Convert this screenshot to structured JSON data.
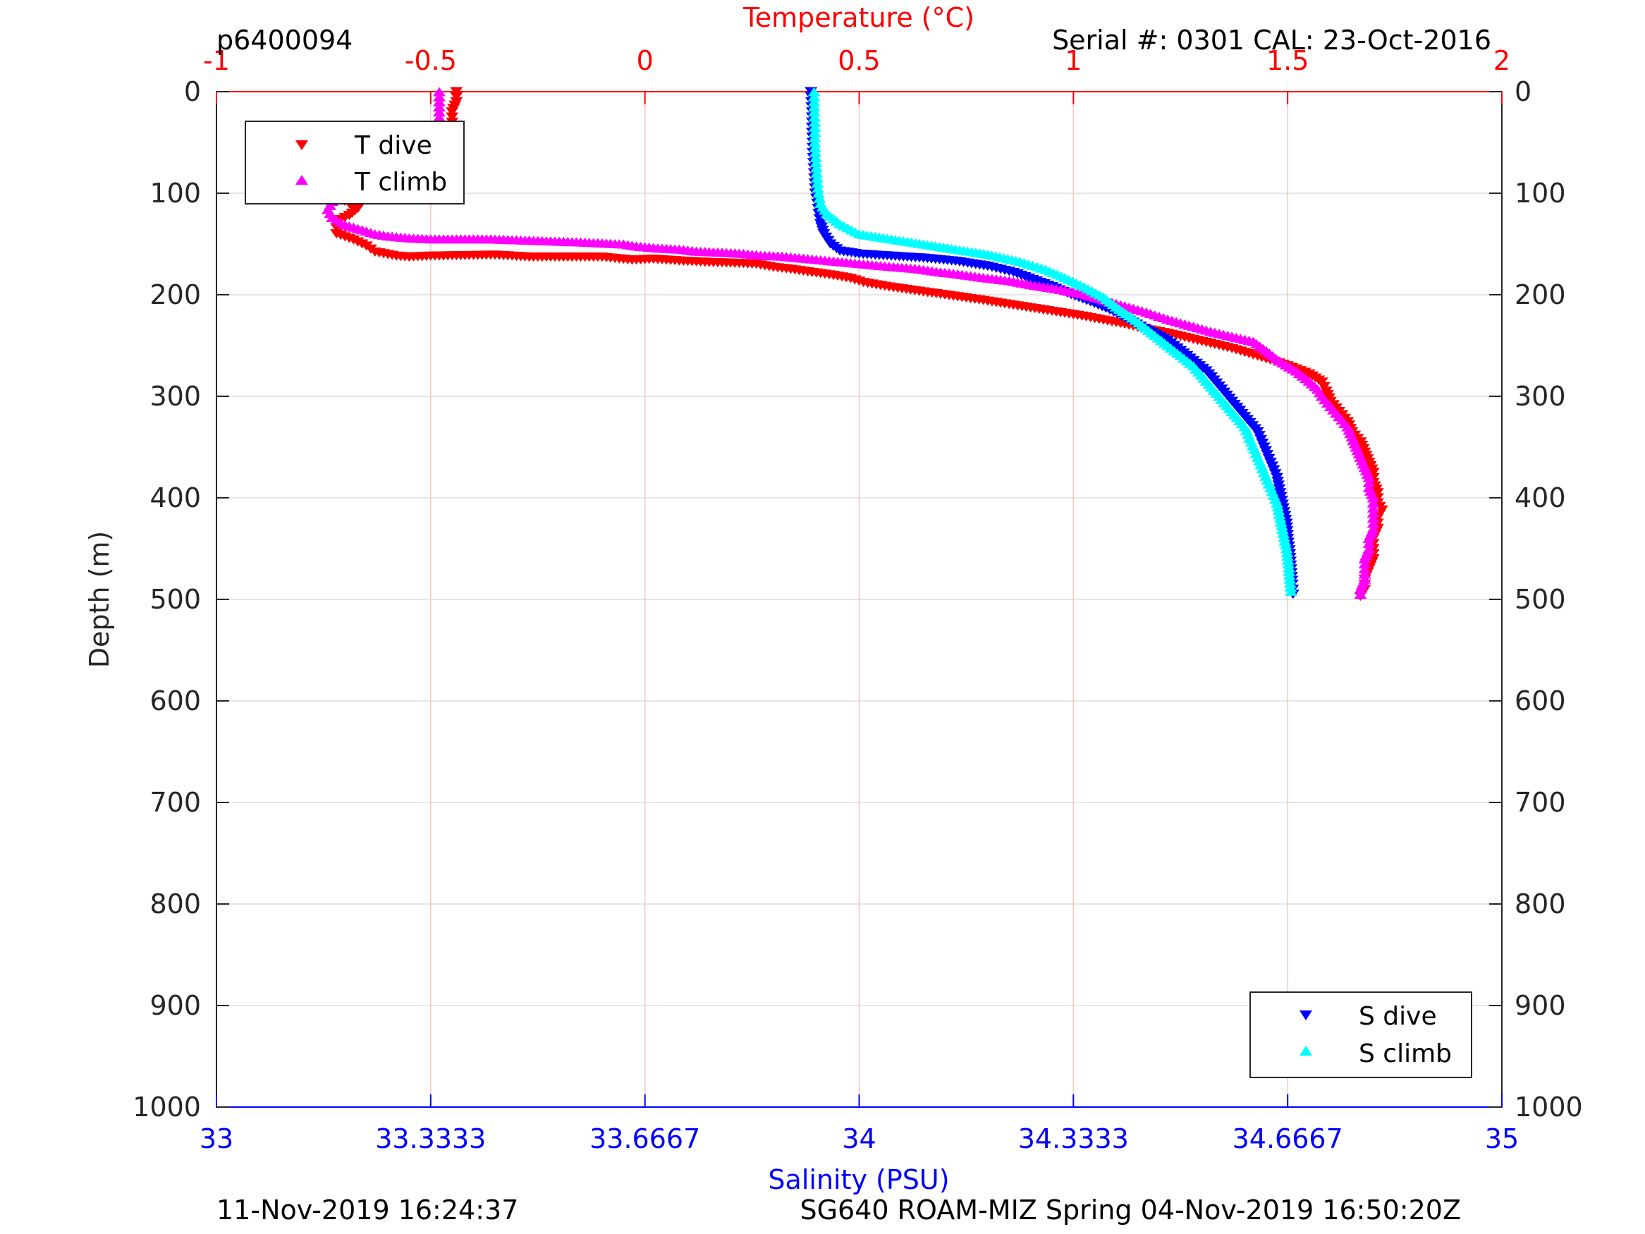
{
  "header": {
    "left_id": "p6400094",
    "right_info": "Serial #: 0301  CAL: 23-Oct-2016"
  },
  "footer": {
    "left_timestamp": "11-Nov-2019 16:24:37",
    "right_info": "SG640 ROAM-MIZ Spring 04-Nov-2019 16:50:20Z"
  },
  "colors": {
    "temperature_axis": "#ff0000",
    "salinity_axis": "#0000ff",
    "t_dive": "#ff0000",
    "t_climb": "#ff00ff",
    "s_dive": "#0000ff",
    "s_climb": "#00ffff",
    "grid_vertical": "#f4c6c6",
    "grid_horizontal": "#dddddd"
  },
  "chart_data": {
    "type": "scatter",
    "top_axis": {
      "label": "Temperature (°C)",
      "range": [
        -1,
        2
      ],
      "ticks": [
        -1,
        -0.5,
        0,
        0.5,
        1,
        1.5,
        2
      ],
      "tick_labels": [
        "-1",
        "-0.5",
        "0",
        "0.5",
        "1",
        "1.5",
        "2"
      ]
    },
    "bottom_axis": {
      "label": "Salinity (PSU)",
      "range": [
        33,
        35
      ],
      "ticks": [
        33,
        33.3333,
        33.6667,
        34,
        34.3333,
        34.6667,
        35
      ],
      "tick_labels": [
        "33",
        "33.3333",
        "33.6667",
        "34",
        "34.3333",
        "34.6667",
        "35"
      ]
    },
    "y_axis": {
      "label": "Depth (m)",
      "range": [
        0,
        1000
      ],
      "reversed": true,
      "ticks": [
        0,
        100,
        200,
        300,
        400,
        500,
        600,
        700,
        800,
        900,
        1000
      ],
      "tick_labels": [
        "0",
        "100",
        "200",
        "300",
        "400",
        "500",
        "600",
        "700",
        "800",
        "900",
        "1000"
      ]
    },
    "grid": true,
    "legends": [
      {
        "placement": "top-left",
        "entries": [
          "T dive",
          "T climb"
        ]
      },
      {
        "placement": "bottom-right",
        "entries": [
          "S dive",
          "S climb"
        ]
      }
    ],
    "series": [
      {
        "name": "T dive",
        "axis": "temperature",
        "marker": "triangle-down",
        "points": [
          [
            -0.44,
            0
          ],
          [
            -0.44,
            10
          ],
          [
            -0.45,
            20
          ],
          [
            -0.45,
            30
          ],
          [
            -0.45,
            40
          ],
          [
            -0.45,
            50
          ],
          [
            -0.46,
            60
          ],
          [
            -0.47,
            70
          ],
          [
            -0.49,
            78
          ],
          [
            -0.54,
            85
          ],
          [
            -0.6,
            92
          ],
          [
            -0.66,
            100
          ],
          [
            -0.7,
            108
          ],
          [
            -0.67,
            115
          ],
          [
            -0.69,
            122
          ],
          [
            -0.72,
            128
          ],
          [
            -0.72,
            134
          ],
          [
            -0.72,
            140
          ],
          [
            -0.68,
            146
          ],
          [
            -0.65,
            152
          ],
          [
            -0.63,
            158
          ],
          [
            -0.58,
            162
          ],
          [
            -0.55,
            163
          ],
          [
            -0.5,
            162
          ],
          [
            -0.35,
            161
          ],
          [
            -0.27,
            163
          ],
          [
            -0.19,
            163
          ],
          [
            -0.1,
            163
          ],
          [
            -0.03,
            166
          ],
          [
            0.02,
            165
          ],
          [
            0.09,
            167
          ],
          [
            0.14,
            168
          ],
          [
            0.21,
            169
          ],
          [
            0.26,
            170
          ],
          [
            0.3,
            173
          ],
          [
            0.34,
            175
          ],
          [
            0.39,
            178
          ],
          [
            0.44,
            181
          ],
          [
            0.48,
            184
          ],
          [
            0.51,
            188
          ],
          [
            0.55,
            191
          ],
          [
            0.58,
            193
          ],
          [
            0.63,
            196
          ],
          [
            0.68,
            199
          ],
          [
            0.73,
            202
          ],
          [
            0.78,
            205
          ],
          [
            0.84,
            209
          ],
          [
            0.9,
            213
          ],
          [
            0.96,
            217
          ],
          [
            1.02,
            221
          ],
          [
            1.07,
            225
          ],
          [
            1.12,
            229
          ],
          [
            1.17,
            234
          ],
          [
            1.22,
            238
          ],
          [
            1.27,
            243
          ],
          [
            1.32,
            248
          ],
          [
            1.37,
            253
          ],
          [
            1.41,
            258
          ],
          [
            1.45,
            263
          ],
          [
            1.5,
            270
          ],
          [
            1.55,
            278
          ],
          [
            1.58,
            286
          ],
          [
            1.59,
            295
          ],
          [
            1.6,
            305
          ],
          [
            1.62,
            315
          ],
          [
            1.64,
            325
          ],
          [
            1.65,
            335
          ],
          [
            1.67,
            345
          ],
          [
            1.68,
            355
          ],
          [
            1.69,
            365
          ],
          [
            1.7,
            375
          ],
          [
            1.7,
            385
          ],
          [
            1.71,
            395
          ],
          [
            1.71,
            405
          ],
          [
            1.72,
            412
          ],
          [
            1.71,
            420
          ],
          [
            1.71,
            430
          ],
          [
            1.7,
            440
          ],
          [
            1.7,
            450
          ],
          [
            1.7,
            460
          ],
          [
            1.69,
            470
          ],
          [
            1.68,
            480
          ],
          [
            1.68,
            490
          ],
          [
            1.67,
            497
          ]
        ]
      },
      {
        "name": "T climb",
        "axis": "temperature",
        "marker": "triangle-up",
        "points": [
          [
            -0.48,
            0
          ],
          [
            -0.48,
            10
          ],
          [
            -0.48,
            20
          ],
          [
            -0.48,
            30
          ],
          [
            -0.48,
            40
          ],
          [
            -0.48,
            50
          ],
          [
            -0.49,
            60
          ],
          [
            -0.5,
            68
          ],
          [
            -0.54,
            76
          ],
          [
            -0.6,
            84
          ],
          [
            -0.65,
            92
          ],
          [
            -0.7,
            100
          ],
          [
            -0.73,
            108
          ],
          [
            -0.74,
            116
          ],
          [
            -0.73,
            124
          ],
          [
            -0.7,
            131
          ],
          [
            -0.66,
            136
          ],
          [
            -0.63,
            140
          ],
          [
            -0.6,
            142
          ],
          [
            -0.55,
            144
          ],
          [
            -0.5,
            145
          ],
          [
            -0.43,
            145
          ],
          [
            -0.36,
            145
          ],
          [
            -0.29,
            146
          ],
          [
            -0.22,
            147
          ],
          [
            -0.15,
            148
          ],
          [
            -0.1,
            149
          ],
          [
            -0.05,
            150
          ],
          [
            -0.02,
            152
          ],
          [
            0.03,
            154
          ],
          [
            0.08,
            155
          ],
          [
            0.12,
            157
          ],
          [
            0.17,
            158
          ],
          [
            0.22,
            159
          ],
          [
            0.27,
            161
          ],
          [
            0.32,
            162
          ],
          [
            0.37,
            164
          ],
          [
            0.42,
            166
          ],
          [
            0.47,
            168
          ],
          [
            0.52,
            170
          ],
          [
            0.57,
            172
          ],
          [
            0.63,
            174
          ],
          [
            0.68,
            177
          ],
          [
            0.74,
            180
          ],
          [
            0.79,
            183
          ],
          [
            0.85,
            186
          ],
          [
            0.9,
            190
          ],
          [
            0.96,
            194
          ],
          [
            1.02,
            199
          ],
          [
            1.07,
            205
          ],
          [
            1.12,
            211
          ],
          [
            1.17,
            217
          ],
          [
            1.22,
            224
          ],
          [
            1.27,
            230
          ],
          [
            1.32,
            236
          ],
          [
            1.37,
            241
          ],
          [
            1.42,
            246
          ],
          [
            1.45,
            255
          ],
          [
            1.48,
            265
          ],
          [
            1.52,
            275
          ],
          [
            1.55,
            285
          ],
          [
            1.57,
            293
          ],
          [
            1.58,
            300
          ],
          [
            1.6,
            310
          ],
          [
            1.62,
            320
          ],
          [
            1.64,
            330
          ],
          [
            1.65,
            340
          ],
          [
            1.66,
            350
          ],
          [
            1.67,
            360
          ],
          [
            1.68,
            370
          ],
          [
            1.69,
            380
          ],
          [
            1.69,
            390
          ],
          [
            1.7,
            400
          ],
          [
            1.7,
            410
          ],
          [
            1.7,
            420
          ],
          [
            1.7,
            430
          ],
          [
            1.69,
            440
          ],
          [
            1.69,
            450
          ],
          [
            1.68,
            460
          ],
          [
            1.68,
            470
          ],
          [
            1.68,
            480
          ],
          [
            1.67,
            490
          ],
          [
            1.67,
            495
          ]
        ]
      },
      {
        "name": "S dive",
        "axis": "salinity",
        "marker": "triangle-down",
        "points": [
          [
            33.925,
            0
          ],
          [
            33.926,
            10
          ],
          [
            33.927,
            20
          ],
          [
            33.927,
            30
          ],
          [
            33.927,
            40
          ],
          [
            33.928,
            50
          ],
          [
            33.928,
            60
          ],
          [
            33.929,
            70
          ],
          [
            33.93,
            80
          ],
          [
            33.931,
            90
          ],
          [
            33.932,
            100
          ],
          [
            33.935,
            110
          ],
          [
            33.937,
            120
          ],
          [
            33.94,
            130
          ],
          [
            33.945,
            140
          ],
          [
            33.955,
            150
          ],
          [
            33.97,
            157
          ],
          [
            34.0,
            160
          ],
          [
            34.05,
            162
          ],
          [
            34.1,
            164
          ],
          [
            34.15,
            167
          ],
          [
            34.2,
            172
          ],
          [
            34.24,
            178
          ],
          [
            34.27,
            185
          ],
          [
            34.3,
            192
          ],
          [
            34.33,
            200
          ],
          [
            34.36,
            207
          ],
          [
            34.39,
            215
          ],
          [
            34.42,
            225
          ],
          [
            34.45,
            235
          ],
          [
            34.48,
            245
          ],
          [
            34.5,
            255
          ],
          [
            34.52,
            265
          ],
          [
            34.54,
            275
          ],
          [
            34.56,
            290
          ],
          [
            34.58,
            305
          ],
          [
            34.6,
            320
          ],
          [
            34.62,
            335
          ],
          [
            34.63,
            350
          ],
          [
            34.64,
            365
          ],
          [
            34.65,
            380
          ],
          [
            34.655,
            395
          ],
          [
            34.66,
            410
          ],
          [
            34.665,
            425
          ],
          [
            34.667,
            440
          ],
          [
            34.67,
            455
          ],
          [
            34.672,
            470
          ],
          [
            34.674,
            485
          ],
          [
            34.675,
            495
          ]
        ]
      },
      {
        "name": "S climb",
        "axis": "salinity",
        "marker": "triangle-up",
        "points": [
          [
            33.93,
            0
          ],
          [
            33.93,
            10
          ],
          [
            33.93,
            20
          ],
          [
            33.931,
            30
          ],
          [
            33.931,
            40
          ],
          [
            33.931,
            50
          ],
          [
            33.932,
            60
          ],
          [
            33.933,
            70
          ],
          [
            33.934,
            80
          ],
          [
            33.935,
            90
          ],
          [
            33.937,
            100
          ],
          [
            33.94,
            110
          ],
          [
            33.95,
            120
          ],
          [
            33.97,
            130
          ],
          [
            34.0,
            140
          ],
          [
            34.05,
            145
          ],
          [
            34.1,
            150
          ],
          [
            34.15,
            155
          ],
          [
            34.2,
            160
          ],
          [
            34.25,
            167
          ],
          [
            34.29,
            175
          ],
          [
            34.32,
            183
          ],
          [
            34.35,
            192
          ],
          [
            34.38,
            202
          ],
          [
            34.4,
            212
          ],
          [
            34.43,
            225
          ],
          [
            34.46,
            240
          ],
          [
            34.49,
            255
          ],
          [
            34.52,
            270
          ],
          [
            34.54,
            285
          ],
          [
            34.56,
            300
          ],
          [
            34.58,
            315
          ],
          [
            34.6,
            330
          ],
          [
            34.61,
            345
          ],
          [
            34.62,
            360
          ],
          [
            34.63,
            375
          ],
          [
            34.64,
            390
          ],
          [
            34.65,
            405
          ],
          [
            34.655,
            420
          ],
          [
            34.66,
            435
          ],
          [
            34.665,
            450
          ],
          [
            34.668,
            465
          ],
          [
            34.67,
            480
          ],
          [
            34.672,
            492
          ]
        ]
      }
    ]
  }
}
